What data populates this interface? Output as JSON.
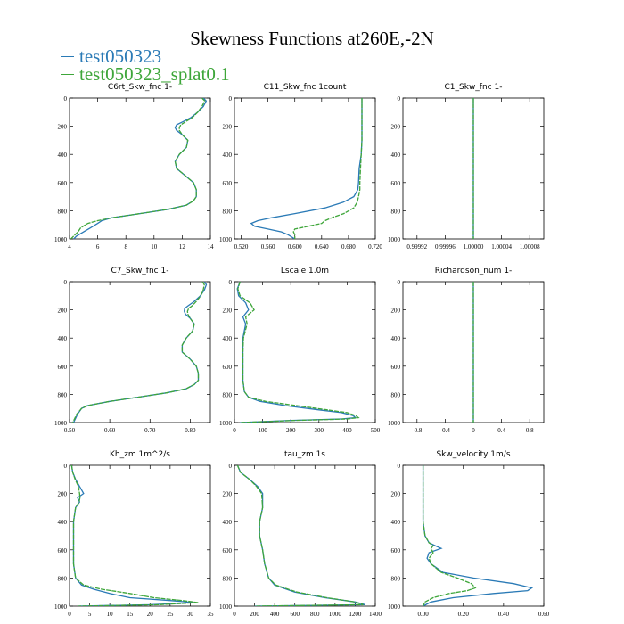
{
  "figure": {
    "title": "Skewness Functions at260E,-2N",
    "colors": {
      "series_a": "#2a7ab6",
      "series_b": "#3ea63a"
    },
    "legend": [
      "test050323",
      "test050323_splat0.1"
    ]
  },
  "chart_data": [
    {
      "type": "line",
      "title": "C6rt_Skw_fnc   1-",
      "xlim": [
        4,
        14
      ],
      "ylim": [
        0,
        1000
      ],
      "y_inverted": true,
      "xticks": [
        4,
        6,
        8,
        10,
        12,
        14
      ],
      "xtick_labels": [
        "4",
        "6",
        "8",
        "10",
        "12",
        "14"
      ],
      "yticks": [
        0,
        200,
        400,
        600,
        800,
        1000
      ],
      "series": [
        {
          "name": "test050323",
          "y": [
            0,
            20,
            60,
            100,
            140,
            170,
            190,
            210,
            230,
            260,
            300,
            350,
            400,
            450,
            500,
            550,
            600,
            650,
            700,
            730,
            760,
            790,
            820,
            850,
            870,
            890,
            920,
            950,
            980,
            1000
          ],
          "x": [
            13.5,
            13.7,
            13.5,
            13.1,
            12.6,
            12.0,
            11.6,
            11.5,
            11.6,
            12.0,
            12.4,
            12.3,
            11.8,
            11.5,
            11.6,
            12.2,
            12.8,
            13.0,
            13.0,
            12.8,
            12.3,
            11.0,
            9.0,
            7.0,
            6.3,
            6.0,
            5.5,
            5.0,
            4.5,
            4.3
          ]
        },
        {
          "name": "test050323_splat0.1",
          "y": [
            0,
            20,
            60,
            100,
            140,
            170,
            190,
            210,
            230,
            260,
            300,
            350,
            400,
            450,
            500,
            550,
            600,
            650,
            700,
            730,
            760,
            790,
            820,
            850,
            870,
            890,
            920,
            950,
            980,
            1000
          ],
          "x": [
            13.4,
            13.6,
            13.4,
            13.1,
            12.7,
            12.2,
            11.9,
            11.8,
            11.8,
            12.0,
            12.4,
            12.3,
            11.8,
            11.5,
            11.6,
            12.2,
            12.8,
            13.0,
            13.0,
            12.8,
            12.3,
            11.0,
            9.0,
            7.0,
            6.0,
            5.3,
            4.8,
            4.6,
            4.3,
            4.1
          ]
        }
      ]
    },
    {
      "type": "line",
      "title": "C11_Skw_fnc   1count",
      "xlim": [
        0.51,
        0.72
      ],
      "ylim": [
        0,
        1000
      ],
      "y_inverted": true,
      "xticks": [
        0.52,
        0.56,
        0.6,
        0.64,
        0.68,
        0.72
      ],
      "xtick_labels": [
        "0.520",
        "0.560",
        "0.600",
        "0.640",
        "0.680",
        "0.720"
      ],
      "yticks": [
        0,
        200,
        400,
        600,
        800,
        1000
      ],
      "series": [
        {
          "name": "test050323",
          "y": [
            0,
            100,
            200,
            300,
            400,
            500,
            600,
            650,
            700,
            740,
            780,
            820,
            850,
            870,
            890,
            910,
            930,
            950,
            970,
            1000
          ],
          "x": [
            0.7,
            0.7,
            0.7,
            0.7,
            0.699,
            0.696,
            0.695,
            0.694,
            0.688,
            0.672,
            0.645,
            0.6,
            0.565,
            0.545,
            0.535,
            0.54,
            0.56,
            0.58,
            0.59,
            0.6
          ]
        },
        {
          "name": "test050323_splat0.1",
          "y": [
            0,
            100,
            200,
            300,
            400,
            500,
            600,
            650,
            700,
            740,
            780,
            820,
            850,
            870,
            890,
            910,
            930,
            950,
            970,
            1000
          ],
          "x": [
            0.7,
            0.7,
            0.7,
            0.7,
            0.699,
            0.698,
            0.697,
            0.697,
            0.695,
            0.693,
            0.688,
            0.673,
            0.655,
            0.645,
            0.64,
            0.62,
            0.6,
            0.598,
            0.6,
            0.6
          ]
        }
      ]
    },
    {
      "type": "line",
      "title": "C1_Skw_fnc   1-",
      "xlim": [
        0.9999,
        1.0001
      ],
      "ylim": [
        0,
        1000
      ],
      "y_inverted": true,
      "xticks": [
        0.99992,
        0.99996,
        1.0,
        1.00004,
        1.00008
      ],
      "xtick_labels": [
        "0.99992",
        "0.99996",
        "1.00000",
        "1.00004",
        "1.00008"
      ],
      "yticks": [
        0,
        200,
        400,
        600,
        800,
        1000
      ],
      "series": [
        {
          "name": "test050323",
          "y": [
            0,
            1000
          ],
          "x": [
            1.0,
            1.0
          ]
        },
        {
          "name": "test050323_splat0.1",
          "y": [
            0,
            1000
          ],
          "x": [
            1.0,
            1.0
          ]
        }
      ]
    },
    {
      "type": "line",
      "title": "C7_Skw_fnc   1-",
      "xlim": [
        0.5,
        0.85
      ],
      "ylim": [
        0,
        1000
      ],
      "y_inverted": true,
      "xticks": [
        0.5,
        0.6,
        0.7,
        0.8
      ],
      "xtick_labels": [
        "0.50",
        "0.60",
        "0.70",
        "0.80"
      ],
      "yticks": [
        0,
        200,
        400,
        600,
        800,
        1000
      ],
      "series": [
        {
          "name": "test050323",
          "y": [
            0,
            20,
            60,
            100,
            140,
            170,
            190,
            210,
            230,
            260,
            300,
            350,
            400,
            450,
            500,
            550,
            600,
            650,
            700,
            730,
            760,
            790,
            820,
            850,
            880,
            900,
            920,
            940,
            970,
            1000
          ],
          "x": [
            0.835,
            0.84,
            0.835,
            0.825,
            0.81,
            0.795,
            0.786,
            0.785,
            0.788,
            0.8,
            0.81,
            0.806,
            0.79,
            0.78,
            0.78,
            0.8,
            0.815,
            0.82,
            0.82,
            0.81,
            0.79,
            0.74,
            0.67,
            0.6,
            0.545,
            0.53,
            0.525,
            0.52,
            0.515,
            0.51
          ]
        },
        {
          "name": "test050323_splat0.1",
          "y": [
            0,
            20,
            60,
            100,
            140,
            170,
            190,
            210,
            230,
            260,
            300,
            350,
            400,
            450,
            500,
            550,
            600,
            650,
            700,
            730,
            760,
            790,
            820,
            850,
            880,
            900,
            920,
            940,
            970,
            1000
          ],
          "x": [
            0.83,
            0.835,
            0.832,
            0.826,
            0.815,
            0.805,
            0.796,
            0.793,
            0.794,
            0.8,
            0.81,
            0.806,
            0.79,
            0.78,
            0.78,
            0.8,
            0.815,
            0.82,
            0.82,
            0.81,
            0.79,
            0.74,
            0.67,
            0.6,
            0.545,
            0.53,
            0.524,
            0.518,
            0.513,
            0.508
          ]
        }
      ]
    },
    {
      "type": "line",
      "title": "Lscale   1.0m",
      "xlim": [
        0,
        500
      ],
      "ylim": [
        0,
        1000
      ],
      "y_inverted": true,
      "xticks": [
        0,
        100,
        200,
        300,
        400,
        500
      ],
      "xtick_labels": [
        "0",
        "100",
        "200",
        "300",
        "400",
        "500"
      ],
      "yticks": [
        0,
        200,
        400,
        600,
        800,
        1000
      ],
      "series": [
        {
          "name": "test050323",
          "y": [
            0,
            50,
            100,
            150,
            200,
            250,
            300,
            400,
            500,
            600,
            700,
            780,
            820,
            850,
            880,
            910,
            930,
            950,
            965,
            975,
            985,
            1000
          ],
          "x": [
            20,
            10,
            15,
            40,
            50,
            30,
            40,
            30,
            30,
            30,
            30,
            35,
            50,
            90,
            180,
            300,
            380,
            420,
            430,
            380,
            200,
            20
          ]
        },
        {
          "name": "test050323_splat0.1",
          "y": [
            0,
            50,
            100,
            150,
            200,
            250,
            300,
            400,
            500,
            600,
            700,
            780,
            820,
            850,
            880,
            910,
            930,
            950,
            965,
            975,
            985,
            1000
          ],
          "x": [
            20,
            12,
            20,
            55,
            70,
            40,
            45,
            32,
            30,
            30,
            30,
            35,
            50,
            110,
            220,
            330,
            400,
            430,
            440,
            400,
            220,
            20
          ]
        }
      ]
    },
    {
      "type": "line",
      "title": "Richardson_num   1-",
      "xlim": [
        -1,
        1
      ],
      "ylim": [
        0,
        1000
      ],
      "y_inverted": true,
      "xticks": [
        -0.8,
        -0.4,
        0,
        0.4,
        0.8
      ],
      "xtick_labels": [
        "-0.8",
        "-0.4",
        "0",
        "0.4",
        "0.8"
      ],
      "yticks": [
        0,
        200,
        400,
        600,
        800,
        1000
      ],
      "series": [
        {
          "name": "test050323",
          "y": [
            0,
            1000
          ],
          "x": [
            0,
            0
          ]
        },
        {
          "name": "test050323_splat0.1",
          "y": [
            0,
            1000
          ],
          "x": [
            0,
            0
          ]
        }
      ]
    },
    {
      "type": "line",
      "title": "Kh_zm   1m^2/s",
      "xlim": [
        0,
        35
      ],
      "ylim": [
        0,
        1000
      ],
      "y_inverted": true,
      "xticks": [
        0,
        5,
        10,
        15,
        20,
        25,
        30,
        35
      ],
      "xtick_labels": [
        "0",
        "5",
        "10",
        "15",
        "20",
        "25",
        "30",
        "35"
      ],
      "yticks": [
        0,
        200,
        400,
        600,
        800,
        1000
      ],
      "series": [
        {
          "name": "test050323",
          "y": [
            0,
            50,
            100,
            150,
            200,
            230,
            260,
            300,
            400,
            500,
            600,
            700,
            800,
            850,
            880,
            910,
            940,
            960,
            975,
            990,
            1000
          ],
          "x": [
            0.5,
            0.8,
            1.5,
            2.5,
            3.5,
            2.0,
            2.5,
            1.5,
            1.0,
            1.0,
            1.0,
            1.0,
            1.5,
            3.0,
            6.0,
            10.0,
            15.0,
            25.0,
            31.0,
            20.0,
            2.0
          ]
        },
        {
          "name": "test050323_splat0.1",
          "y": [
            0,
            50,
            100,
            150,
            200,
            230,
            260,
            300,
            400,
            500,
            600,
            700,
            800,
            850,
            880,
            910,
            940,
            960,
            975,
            990,
            1000
          ],
          "x": [
            0.5,
            0.8,
            1.4,
            2.2,
            2.5,
            2.6,
            2.4,
            1.5,
            1.0,
            1.0,
            1.0,
            1.0,
            1.5,
            3.5,
            8.0,
            15.0,
            21.0,
            28.0,
            32.0,
            22.0,
            2.0
          ]
        }
      ]
    },
    {
      "type": "line",
      "title": "tau_zm   1s",
      "xlim": [
        0,
        1400
      ],
      "ylim": [
        0,
        1000
      ],
      "y_inverted": true,
      "xticks": [
        0,
        200,
        400,
        600,
        800,
        1000,
        1200,
        1400
      ],
      "xtick_labels": [
        "0",
        "200",
        "400",
        "600",
        "800",
        "1000",
        "1200",
        "1400"
      ],
      "yticks": [
        0,
        200,
        400,
        600,
        800,
        1000
      ],
      "series": [
        {
          "name": "test050323",
          "y": [
            0,
            50,
            100,
            150,
            200,
            300,
            400,
            500,
            600,
            700,
            800,
            850,
            900,
            940,
            970,
            990,
            1000
          ],
          "x": [
            30,
            60,
            150,
            230,
            280,
            280,
            250,
            250,
            280,
            300,
            340,
            400,
            600,
            900,
            1200,
            1300,
            200
          ]
        },
        {
          "name": "test050323_splat0.1",
          "y": [
            0,
            50,
            100,
            150,
            200,
            300,
            400,
            500,
            600,
            700,
            800,
            850,
            900,
            940,
            970,
            990,
            1000
          ],
          "x": [
            30,
            60,
            150,
            220,
            270,
            280,
            250,
            250,
            280,
            300,
            340,
            410,
            620,
            920,
            1200,
            1280,
            200
          ]
        }
      ]
    },
    {
      "type": "line",
      "title": "Skw_velocity   1m/s",
      "xlim": [
        -0.1,
        0.6
      ],
      "ylim": [
        0,
        1000
      ],
      "y_inverted": true,
      "xticks": [
        0,
        0.2,
        0.4,
        0.6
      ],
      "xtick_labels": [
        "0.00",
        "0.20",
        "0.40",
        "0.60"
      ],
      "yticks": [
        0,
        200,
        400,
        600,
        800,
        1000
      ],
      "series": [
        {
          "name": "test050323",
          "y": [
            0,
            200,
            400,
            500,
            550,
            570,
            590,
            620,
            660,
            700,
            760,
            800,
            840,
            870,
            890,
            910,
            940,
            970,
            1000
          ],
          "x": [
            0,
            0,
            0,
            0.01,
            0.03,
            0.06,
            0.09,
            0.03,
            0.02,
            0.04,
            0.1,
            0.25,
            0.45,
            0.54,
            0.52,
            0.35,
            0.15,
            0.04,
            0
          ]
        },
        {
          "name": "test050323_splat0.1",
          "y": [
            0,
            200,
            400,
            500,
            550,
            570,
            590,
            620,
            660,
            700,
            760,
            800,
            840,
            870,
            890,
            910,
            940,
            970,
            1000
          ],
          "x": [
            0,
            0,
            0,
            0.01,
            0.03,
            0.05,
            0.04,
            0.05,
            0.03,
            0.04,
            0.09,
            0.17,
            0.24,
            0.26,
            0.22,
            0.13,
            0.05,
            0.01,
            0
          ]
        }
      ]
    }
  ]
}
